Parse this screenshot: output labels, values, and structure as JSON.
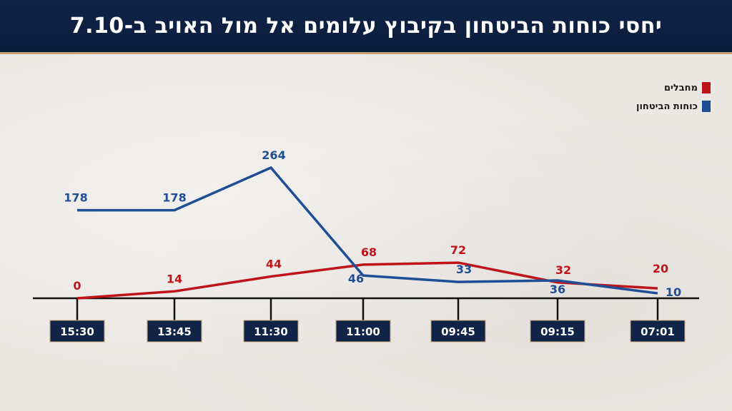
{
  "title": "יחסי כוחות הביטחון בקיבוץ עלומים אל מול האויב ב-7.10",
  "legend": [
    {
      "label": "מחבלים",
      "color": "#c0141b"
    },
    {
      "label": "כוחות הביטחון",
      "color": "#1f4e96"
    }
  ],
  "chart_data": {
    "type": "line",
    "categories": [
      "15:30",
      "13:45",
      "11:30",
      "11:00",
      "09:45",
      "09:15",
      "07:01"
    ],
    "series": [
      {
        "name": "מחבלים",
        "color": "#c0141b",
        "values": [
          0,
          14,
          44,
          68,
          72,
          32,
          20
        ]
      },
      {
        "name": "כוחות הביטחון",
        "color": "#1f4e96",
        "values": [
          178,
          178,
          264,
          46,
          33,
          36,
          10
        ]
      }
    ],
    "ylim": [
      0,
      280
    ],
    "legend_position": "top-right"
  }
}
